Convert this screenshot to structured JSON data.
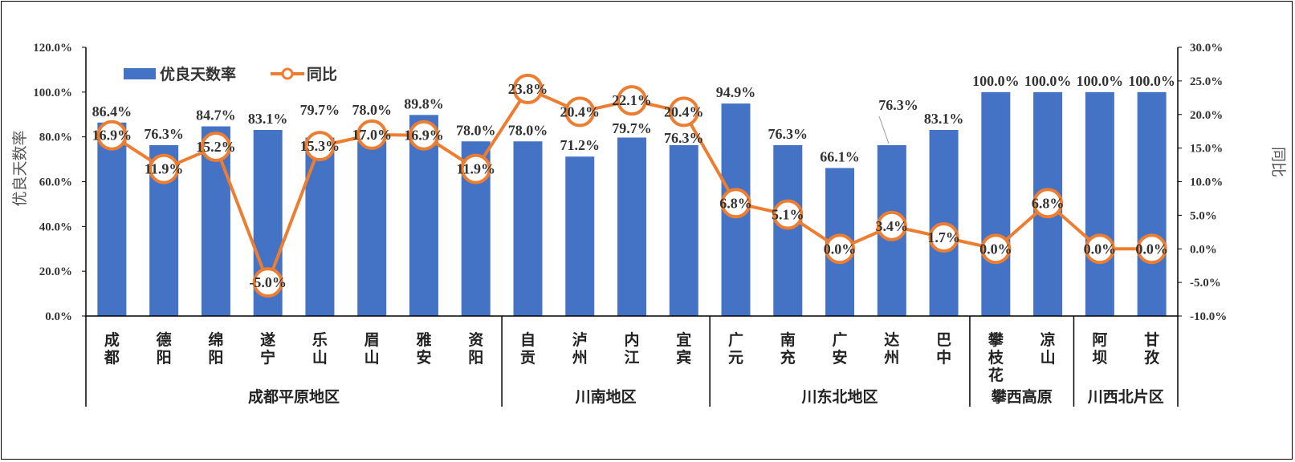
{
  "chart_data": {
    "type": "bar+line",
    "categories": [
      "成都",
      "德阳",
      "绵阳",
      "遂宁",
      "乐山",
      "眉山",
      "雅安",
      "资阳",
      "自贡",
      "泸州",
      "内江",
      "宜宾",
      "广元",
      "南充",
      "广安",
      "达州",
      "巴中",
      "攀枝花",
      "凉山",
      "阿坝",
      "甘孜"
    ],
    "category_lines": [
      [
        "成",
        "都"
      ],
      [
        "德",
        "阳"
      ],
      [
        "绵",
        "阳"
      ],
      [
        "遂",
        "宁"
      ],
      [
        "乐",
        "山"
      ],
      [
        "眉",
        "山"
      ],
      [
        "雅",
        "安"
      ],
      [
        "资",
        "阳"
      ],
      [
        "自",
        "贡"
      ],
      [
        "泸",
        "州"
      ],
      [
        "内",
        "江"
      ],
      [
        "宜",
        "宾"
      ],
      [
        "广",
        "元"
      ],
      [
        "南",
        "充"
      ],
      [
        "广",
        "安"
      ],
      [
        "达",
        "州"
      ],
      [
        "巴",
        "中"
      ],
      [
        "攀",
        "枝",
        "花"
      ],
      [
        "凉",
        "山"
      ],
      [
        "阿",
        "坝"
      ],
      [
        "甘",
        "孜"
      ]
    ],
    "groups": [
      {
        "name": "成都平原地区",
        "start": 0,
        "end": 7
      },
      {
        "name": "川南地区",
        "start": 8,
        "end": 11
      },
      {
        "name": "川东北地区",
        "start": 12,
        "end": 16
      },
      {
        "name": "攀西高原",
        "start": 17,
        "end": 18
      },
      {
        "name": "川西北片区",
        "start": 19,
        "end": 20
      }
    ],
    "series": [
      {
        "name": "优良天数率",
        "type": "bar",
        "axis": "left",
        "color": "#4472C4",
        "values": [
          86.4,
          76.3,
          84.7,
          83.1,
          79.7,
          78.0,
          89.8,
          78.0,
          78.0,
          71.2,
          79.7,
          76.3,
          94.9,
          76.3,
          66.1,
          76.3,
          83.1,
          100.0,
          100.0,
          100.0,
          100.0
        ],
        "labels": [
          "86.4%",
          "76.3%",
          "84.7%",
          "83.1%",
          "79.7%",
          "78.0%",
          "89.8%",
          "78.0%",
          "78.0%",
          "71.2%",
          "79.7%",
          "76.3%",
          "94.9%",
          "76.3%",
          "66.1%",
          "76.3%",
          "83.1%",
          "100.0%",
          "100.0%",
          "100.0%",
          "100.0%"
        ]
      },
      {
        "name": "同比",
        "type": "line",
        "axis": "right",
        "color": "#ED7D31",
        "values": [
          16.9,
          11.9,
          15.2,
          -5.0,
          15.3,
          17.0,
          16.9,
          11.9,
          23.8,
          20.4,
          22.1,
          20.4,
          6.8,
          5.1,
          0.0,
          3.4,
          1.7,
          0.0,
          6.8,
          0.0,
          0.0
        ],
        "labels": [
          "16.9%",
          "11.9%",
          "15.2%",
          "-5.0%",
          "15.3%",
          "17.0%",
          "16.9%",
          "11.9%",
          "23.8%",
          "20.4%",
          "22.1%",
          "20.4%",
          "6.8%",
          "5.1%",
          "0.0%",
          "3.4%",
          "1.7%",
          "0.0%",
          "6.8%",
          "0.0%",
          "0.0%"
        ]
      }
    ],
    "y_left": {
      "label": "优良天数率",
      "min": 0,
      "max": 120,
      "ticks": [
        "0.0%",
        "20.0%",
        "40.0%",
        "60.0%",
        "80.0%",
        "100.0%",
        "120.0%"
      ]
    },
    "y_right": {
      "label": "同比",
      "min": -10,
      "max": 30,
      "ticks": [
        "-10.0%",
        "-5.0%",
        "0.0%",
        "5.0%",
        "10.0%",
        "15.0%",
        "20.0%",
        "25.0%",
        "30.0%"
      ]
    },
    "legend": {
      "position": "top-left",
      "items": [
        "优良天数率",
        "同比"
      ]
    },
    "grid": false
  }
}
